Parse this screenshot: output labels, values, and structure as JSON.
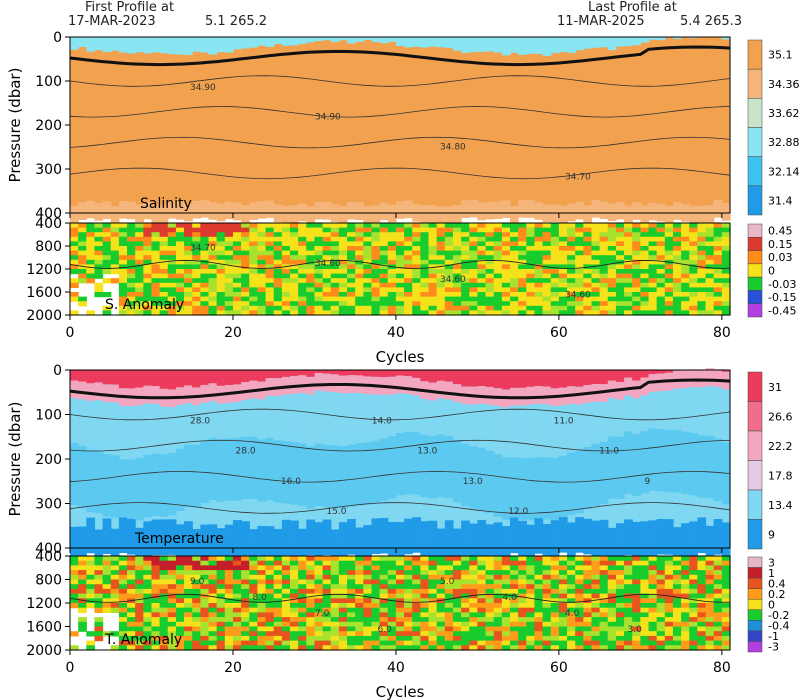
{
  "header": {
    "first_label": "First Profile at",
    "first_date": "17-MAR-2023",
    "first_coords": "5.1 265.2",
    "last_label": "Last Profile at",
    "last_date": "11-MAR-2025",
    "last_coords": "5.4 265.3"
  },
  "chart_data": [
    {
      "type": "heatmap",
      "panel_label": "Salinity",
      "ylabel": "Pressure (dbar)",
      "x_range": [
        0,
        81
      ],
      "y_range": [
        0,
        400
      ],
      "y_inverted": true,
      "x_ticks": [
        0,
        20,
        40,
        60,
        80
      ],
      "y_ticks": [
        0,
        100,
        200,
        300,
        400
      ],
      "colorbar": [
        "35.1",
        "34.36",
        "33.62",
        "32.88",
        "32.14",
        "31.4"
      ],
      "colors": [
        "#f2a14e",
        "#f5b57a",
        "#c9e4c9",
        "#8ae5f2",
        "#3cc4ef",
        "#1f9be8"
      ],
      "contour_labels": [
        "34.90",
        "34.90",
        "34.80",
        "34.70"
      ]
    },
    {
      "type": "heatmap",
      "panel_label": "S. Anomaly",
      "x_range": [
        0,
        81
      ],
      "y_range": [
        400,
        2000
      ],
      "y_inverted": true,
      "x_ticks": [
        0,
        20,
        40,
        60,
        80
      ],
      "y_ticks": [
        400,
        800,
        1200,
        1600,
        2000
      ],
      "colorbar": [
        "0.45",
        "0.15",
        "0.03",
        "0",
        "-0.03",
        "-0.15",
        "-0.45"
      ],
      "colors": [
        "#e8b6c8",
        "#dc3a2e",
        "#ff8c1a",
        "#f5e21b",
        "#19cc2e",
        "#2a4fd8",
        "#b43fe0"
      ],
      "contour_labels": [
        "34.70",
        "34.60",
        "34.60",
        "34.60"
      ]
    },
    {
      "type": "heatmap",
      "panel_label": "Temperature",
      "ylabel": "Pressure (dbar)",
      "x_range": [
        0,
        81
      ],
      "y_range": [
        0,
        400
      ],
      "y_inverted": true,
      "x_ticks": [
        0,
        20,
        40,
        60,
        80
      ],
      "y_ticks": [
        0,
        100,
        200,
        300,
        400
      ],
      "colorbar": [
        "31",
        "26.6",
        "22.2",
        "17.8",
        "13.4",
        "9"
      ],
      "colors": [
        "#ec3b5c",
        "#f26d8c",
        "#f2a6bf",
        "#e5c9e5",
        "#7fd7f2",
        "#1f9be8"
      ],
      "contour_labels": [
        "28.0",
        "28.0",
        "16.0",
        "15.0",
        "14.0",
        "13.0",
        "13.0",
        "12.0",
        "11.0",
        "11.0",
        "9"
      ]
    },
    {
      "type": "heatmap",
      "panel_label": "T. Anomaly",
      "xlabel": "Cycles",
      "x_range": [
        0,
        81
      ],
      "y_range": [
        400,
        2000
      ],
      "y_inverted": true,
      "x_ticks": [
        0,
        20,
        40,
        60,
        80
      ],
      "y_ticks": [
        400,
        800,
        1200,
        1600,
        2000
      ],
      "colorbar": [
        "3",
        "1",
        "0.4",
        "0.2",
        "0",
        "-0.2",
        "-0.4",
        "-1",
        "-3"
      ],
      "colors": [
        "#e8b6c8",
        "#c41e2a",
        "#e8541e",
        "#ff9d1a",
        "#f5e21b",
        "#19cc2e",
        "#1f8fd8",
        "#3346c8",
        "#b43fe0"
      ],
      "contour_labels": [
        "9.0",
        "8.0",
        "7.0",
        "6.0",
        "5.0",
        "4.0",
        "4.0",
        "3.0"
      ]
    }
  ],
  "xlabel_top": "Cycles",
  "xlabel_bottom": "Cycles"
}
